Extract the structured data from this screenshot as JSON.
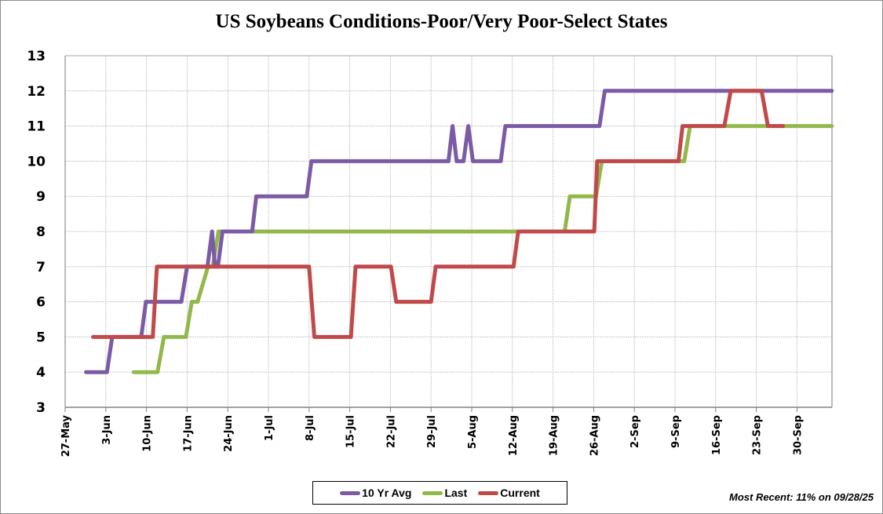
{
  "chart_data": {
    "type": "line",
    "title": "US Soybeans Conditions-Poor/Very Poor-Select States",
    "xlabel": "",
    "ylabel": "",
    "ylim": [
      3,
      13
    ],
    "yticks": [
      "3",
      "4",
      "5",
      "6",
      "7",
      "8",
      "9",
      "10",
      "11",
      "12",
      "13"
    ],
    "x_start": "27-May",
    "x_days_range": [
      0,
      132
    ],
    "xticks": [
      "27-May",
      "3-Jun",
      "10-Jun",
      "17-Jun",
      "24-Jun",
      "1-Jul",
      "8-Jul",
      "15-Jul",
      "22-Jul",
      "29-Jul",
      "5-Aug",
      "12-Aug",
      "19-Aug",
      "26-Aug",
      "2-Sep",
      "9-Sep",
      "16-Sep",
      "23-Sep",
      "30-Sep"
    ],
    "grid": true,
    "legend_position": "bottom-center",
    "series": [
      {
        "name": "10 Yr Avg",
        "color": "#7b5aa6",
        "points": [
          [
            3.6,
            4
          ],
          [
            7.2,
            4
          ],
          [
            8.1,
            5
          ],
          [
            13.1,
            5
          ],
          [
            13.9,
            6
          ],
          [
            20.0,
            6
          ],
          [
            21.0,
            7
          ],
          [
            24.5,
            7
          ],
          [
            25.3,
            8
          ],
          [
            25.8,
            7
          ],
          [
            26.3,
            7
          ],
          [
            27.1,
            8
          ],
          [
            32.2,
            8
          ],
          [
            32.9,
            9
          ],
          [
            41.6,
            9
          ],
          [
            42.4,
            10
          ],
          [
            66.0,
            10
          ],
          [
            66.7,
            11
          ],
          [
            67.4,
            10
          ],
          [
            68.6,
            10
          ],
          [
            69.4,
            11
          ],
          [
            70.2,
            10
          ],
          [
            75.0,
            10
          ],
          [
            75.8,
            11
          ],
          [
            92.0,
            11
          ],
          [
            92.9,
            12
          ],
          [
            132,
            12
          ]
        ]
      },
      {
        "name": "Last",
        "color": "#92b84b",
        "points": [
          [
            11.8,
            4
          ],
          [
            15.9,
            4
          ],
          [
            17.0,
            5
          ],
          [
            20.8,
            5
          ],
          [
            21.8,
            6
          ],
          [
            22.8,
            6
          ],
          [
            24.6,
            7
          ],
          [
            25.4,
            7
          ],
          [
            26.4,
            8
          ],
          [
            86.0,
            8
          ],
          [
            86.9,
            9
          ],
          [
            91.4,
            9
          ],
          [
            92.4,
            10
          ],
          [
            106.6,
            10
          ],
          [
            107.6,
            11
          ],
          [
            132,
            11
          ]
        ]
      },
      {
        "name": "Current",
        "color": "#c0494a",
        "points": [
          [
            4.8,
            5
          ],
          [
            15.1,
            5
          ],
          [
            15.8,
            7
          ],
          [
            42.0,
            7
          ],
          [
            42.9,
            5
          ],
          [
            49.2,
            5
          ],
          [
            50.0,
            7
          ],
          [
            56.1,
            7
          ],
          [
            57.0,
            6
          ],
          [
            63.0,
            6
          ],
          [
            63.8,
            7
          ],
          [
            77.2,
            7
          ],
          [
            78.0,
            8
          ],
          [
            91.1,
            8
          ],
          [
            91.6,
            10
          ],
          [
            105.6,
            10
          ],
          [
            106.3,
            11
          ],
          [
            113.5,
            11
          ],
          [
            114.6,
            12
          ],
          [
            119.9,
            12
          ],
          [
            121.0,
            11
          ],
          [
            123.6,
            11
          ]
        ]
      }
    ]
  },
  "legend": {
    "items": [
      {
        "label": "10 Yr Avg",
        "color": "#7b5aa6"
      },
      {
        "label": "Last",
        "color": "#92b84b"
      },
      {
        "label": "Current",
        "color": "#c0494a"
      }
    ]
  },
  "annotation": "Most Recent: 11% on 09/28/25"
}
